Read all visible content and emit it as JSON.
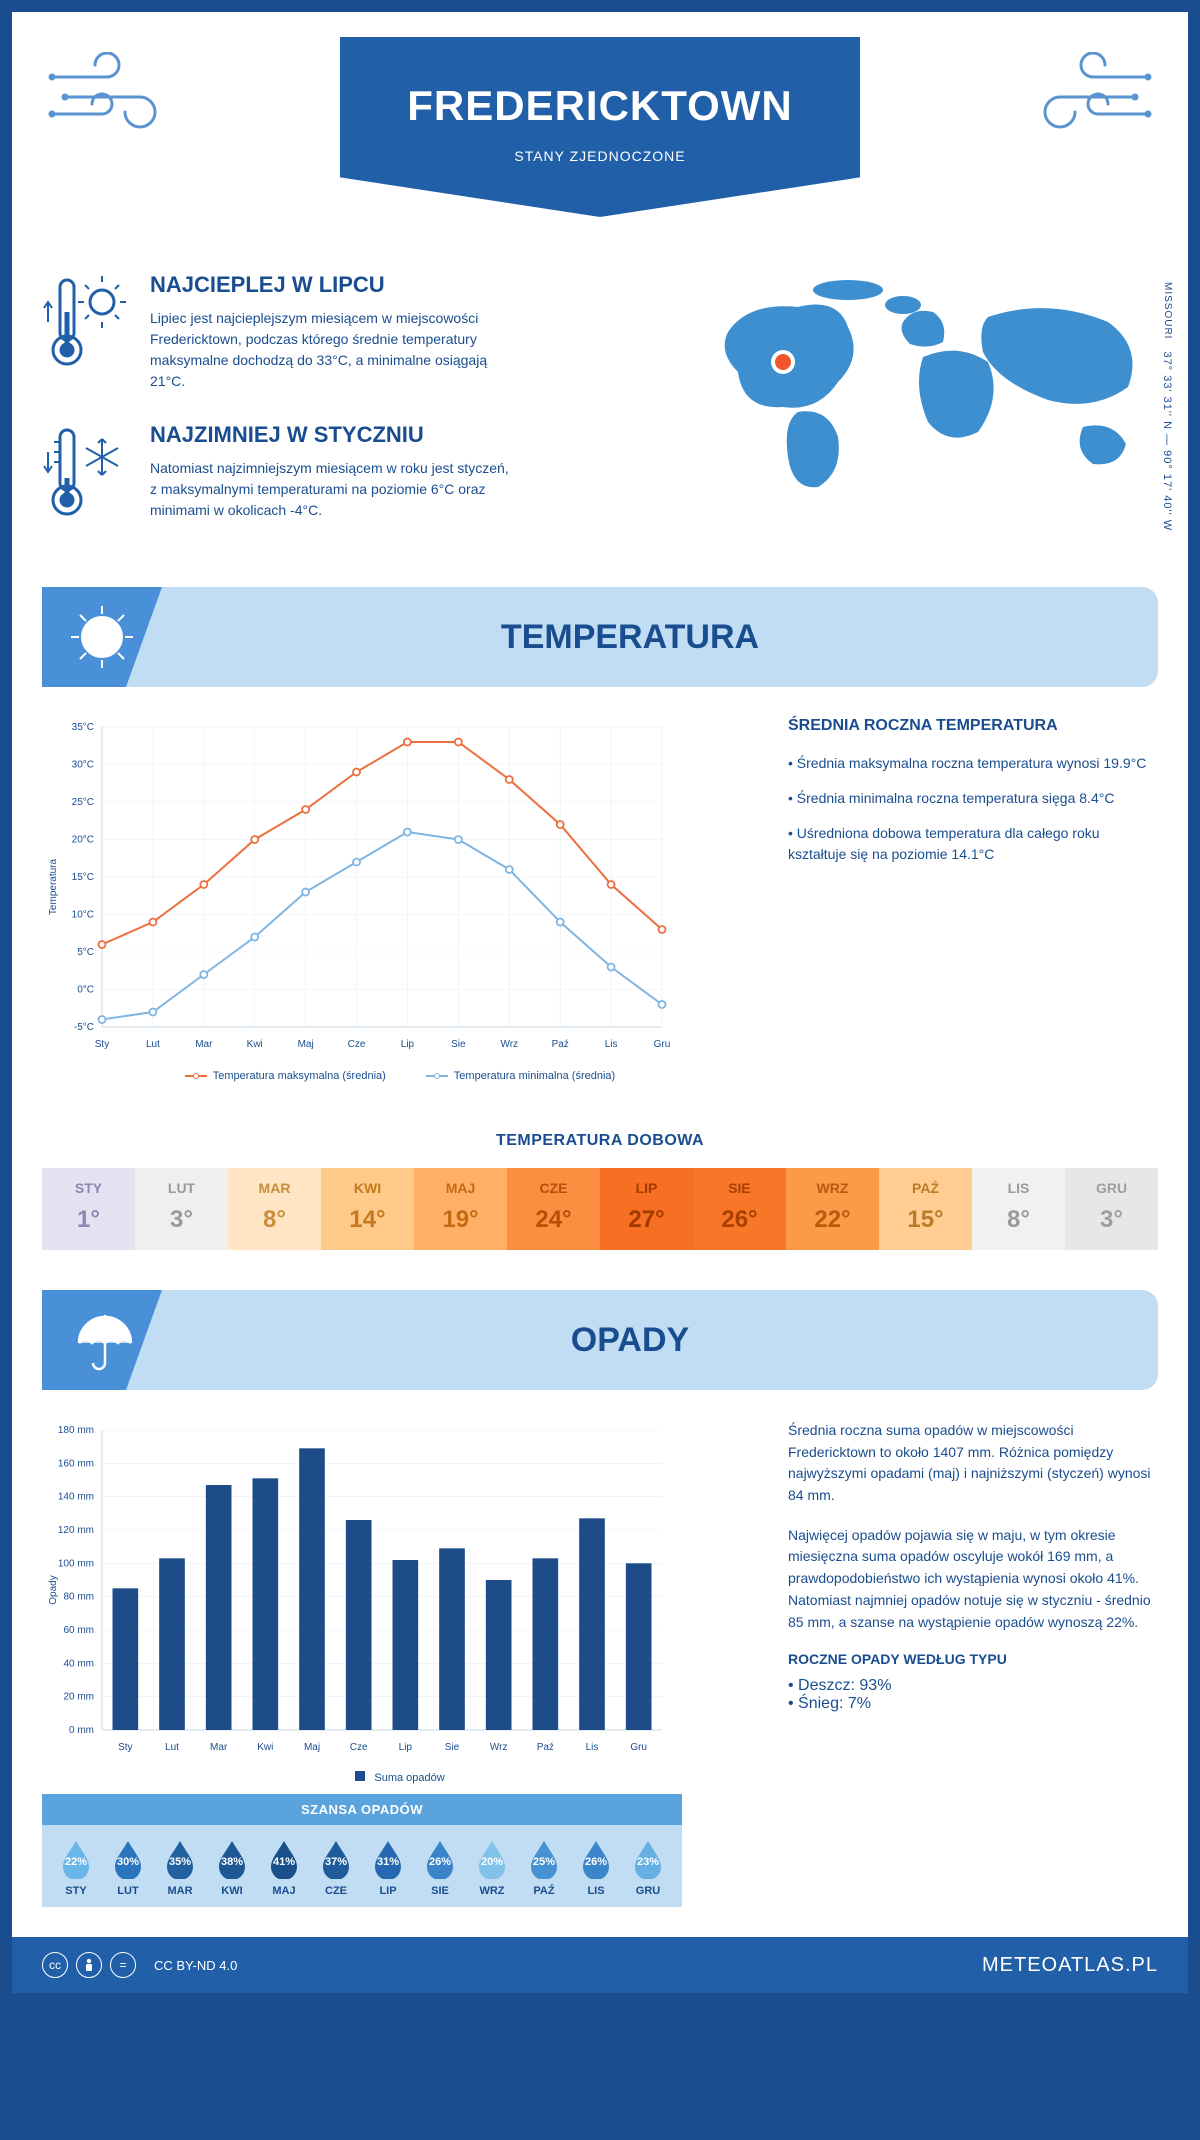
{
  "header": {
    "city": "FREDERICKTOWN",
    "country": "STANY ZJEDNOCZONE"
  },
  "coords": {
    "state": "MISSOURI",
    "text": "37° 33' 31'' N — 90° 17' 40'' W"
  },
  "info": {
    "hot": {
      "title": "NAJCIEPLEJ W LIPCU",
      "text": "Lipiec jest najcieplejszym miesiącem w miejscowości Fredericktown, podczas którego średnie temperatury maksymalne dochodzą do 33°C, a minimalne osiągają 21°C."
    },
    "cold": {
      "title": "NAJZIMNIEJ W STYCZNIU",
      "text": "Natomiast najzimniejszym miesiącem w roku jest styczeń, z maksymalnymi temperaturami na poziomie 6°C oraz minimami w okolicach -4°C."
    }
  },
  "temp_section": {
    "title": "TEMPERATURA"
  },
  "temp_chart": {
    "type": "line",
    "months": [
      "Sty",
      "Lut",
      "Mar",
      "Kwi",
      "Maj",
      "Cze",
      "Lip",
      "Sie",
      "Wrz",
      "Paź",
      "Lis",
      "Gru"
    ],
    "ylabel": "Temperatura",
    "ylim": [
      -5,
      35
    ],
    "ytick": [
      "-5°C",
      "0°C",
      "5°C",
      "10°C",
      "15°C",
      "20°C",
      "25°C",
      "30°C",
      "35°C"
    ],
    "ytick_vals": [
      -5,
      0,
      5,
      10,
      15,
      20,
      25,
      30,
      35
    ],
    "series": {
      "max": {
        "label": "Temperatura maksymalna (średnia)",
        "color": "#ed6f3d",
        "values": [
          6,
          9,
          14,
          20,
          24,
          29,
          33,
          33,
          28,
          22,
          14,
          8
        ]
      },
      "min": {
        "label": "Temperatura minimalna (średnia)",
        "color": "#7db5e5",
        "values": [
          -4,
          -3,
          2,
          7,
          13,
          17,
          21,
          20,
          16,
          9,
          3,
          -2
        ]
      }
    },
    "grid_color": "#e5eef7",
    "bg": "#ffffff"
  },
  "temp_side": {
    "heading": "ŚREDNIA ROCZNA TEMPERATURA",
    "b1": "• Średnia maksymalna roczna temperatura wynosi 19.9°C",
    "b2": "• Średnia minimalna roczna temperatura sięga 8.4°C",
    "b3": "• Uśredniona dobowa temperatura dla całego roku kształtuje się na poziomie 14.1°C"
  },
  "dobowa": {
    "title": "TEMPERATURA DOBOWA",
    "months": [
      "STY",
      "LUT",
      "MAR",
      "KWI",
      "MAJ",
      "CZE",
      "LIP",
      "SIE",
      "WRZ",
      "PAŹ",
      "LIS",
      "GRU"
    ],
    "values": [
      "1°",
      "3°",
      "8°",
      "14°",
      "19°",
      "24°",
      "27°",
      "26°",
      "22°",
      "15°",
      "8°",
      "3°"
    ],
    "colors": [
      "#e4e2f1",
      "#efefef",
      "#ffe5c4",
      "#ffc98a",
      "#ffb066",
      "#fa8f42",
      "#f76f22",
      "#f77628",
      "#fb9a48",
      "#ffcd92",
      "#f1f1f1",
      "#e7e7e7"
    ],
    "text_colors": [
      "#8a87b3",
      "#9a9a9a",
      "#c88d3d",
      "#c47a1d",
      "#c46a12",
      "#b84f06",
      "#a13a00",
      "#a94000",
      "#b85a0c",
      "#bb7c28",
      "#9a9a9a",
      "#9e9e9e"
    ]
  },
  "precip_section": {
    "title": "OPADY"
  },
  "precip_chart": {
    "type": "bar",
    "months": [
      "Sty",
      "Lut",
      "Mar",
      "Kwi",
      "Maj",
      "Cze",
      "Lip",
      "Sie",
      "Wrz",
      "Paź",
      "Lis",
      "Gru"
    ],
    "ylabel": "Opady",
    "ylim": [
      0,
      180
    ],
    "ytick": [
      "0 mm",
      "20 mm",
      "40 mm",
      "60 mm",
      "80 mm",
      "100 mm",
      "120 mm",
      "140 mm",
      "160 mm",
      "180 mm"
    ],
    "ytick_vals": [
      0,
      20,
      40,
      60,
      80,
      100,
      120,
      140,
      160,
      180
    ],
    "values": [
      85,
      103,
      147,
      151,
      169,
      126,
      102,
      109,
      90,
      103,
      127,
      100
    ],
    "bar_color": "#1e4c89",
    "legend": "Suma opadów"
  },
  "precip_side": {
    "p1": "Średnia roczna suma opadów w miejscowości Fredericktown to około 1407 mm. Różnica pomiędzy najwyższymi opadami (maj) i najniższymi (styczeń) wynosi 84 mm.",
    "p2": "Najwięcej opadów pojawia się w maju, w tym okresie miesięczna suma opadów oscyluje wokół 169 mm, a prawdopodobieństwo ich wystąpienia wynosi około 41%. Natomiast najmniej opadów notuje się w styczniu - średnio 85 mm, a szanse na wystąpienie opadów wynoszą 22%.",
    "type_h": "ROCZNE OPADY WEDŁUG TYPU",
    "rain": "• Deszcz: 93%",
    "snow": "• Śnieg: 7%"
  },
  "chance": {
    "title": "SZANSA OPADÓW",
    "months": [
      "STY",
      "LUT",
      "MAR",
      "KWI",
      "MAJ",
      "CZE",
      "LIP",
      "SIE",
      "WRZ",
      "PAŹ",
      "LIS",
      "GRU"
    ],
    "values": [
      "22%",
      "30%",
      "35%",
      "38%",
      "41%",
      "37%",
      "31%",
      "26%",
      "20%",
      "25%",
      "26%",
      "23%"
    ],
    "colors": [
      "#6ab6e8",
      "#2b75be",
      "#22619f",
      "#1d5894",
      "#19508a",
      "#1e5b99",
      "#2669b0",
      "#3a84ca",
      "#82c1ea",
      "#4691d2",
      "#3b85cb",
      "#64b0e3"
    ]
  },
  "footer": {
    "license": "CC BY-ND 4.0",
    "brand": "METEOATLAS.PL"
  }
}
